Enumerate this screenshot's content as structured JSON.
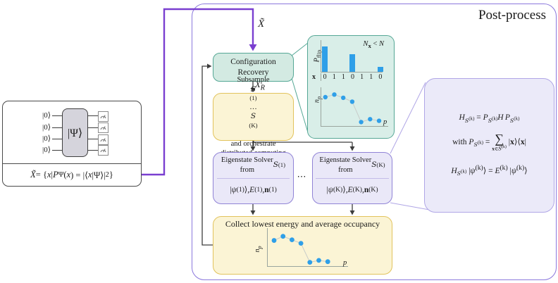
{
  "post_process": {
    "label": "Post-process"
  },
  "circuit_panel": {
    "qubit_labels": [
      "|0⟩",
      "|0⟩",
      "|0⟩",
      "|0⟩"
    ],
    "gate_label": "|Ψ⟩",
    "formula_html": "<i>X̃</i> = {<i>x</i>|<i>P</i><sub>Ψ</sub>(<i>x</i>) = |⟨<i>x</i>|Ψ⟩|<sup>2</sup>}",
    "measurement_icon": "gauge-icon"
  },
  "flow": {
    "xtilde_html": "<i>X̃</i>",
    "config_recovery_html": "Configuration<br>Recovery",
    "xr_html": "<i>X</i><sub><i>R</i></sub>",
    "subsample_html": "Subsample <span class='cal'>S</span><sup>(1)</sup>…<span class='cal'>S</span><sup>(K)</sup><br>and orchestrate<br>distributed computing",
    "ellipsis": "⋯",
    "solver_1": {
      "title_html": "Eigenstate Solver<br>from <span class='cal'>S</span><sup>(1)</sup>",
      "output_html": "|<i>ψ</i><sup>(1)</sup>⟩, <i>E</i><sup>(1)</sup>, <b>n</b><sup>(1)</sup>"
    },
    "solver_K": {
      "title_html": "Eigenstate Solver<br>from <span class='cal'>S</span><sup>(K)</sup>",
      "output_html": "|<i>ψ</i><sup>(K)</sup>⟩, <i>E</i><sup>(K)</sup>, <b>n</b><sup>(K)</sup>"
    },
    "collect_title": "Collect lowest energy and average occupancy"
  },
  "equation_panel": {
    "eq1_html": "<i>H</i><sub><span class='cal'>S</span><sup>(k)</sup></sub> = <i>P</i><sub><span class='cal'>S</span><sup>(k)</sup></sub><i>H</i>&thinsp;<i>P</i><sub><span class='cal'>S</span><sup>(k)</sup></sub>",
    "eq2_html": "with <i>P</i><sub><span class='cal'>S</span><sup>(k)</sup></sub> = <span class='bigsum'><span class='s'>∑</span><span class='lim'><b>x</b>∈<span class='cal'>S</span><sup>(k)</sup></span></span> |<b>x</b>⟩⟨<b>x</b>|",
    "eq3_html": "<i>H</i><sub><span class='cal'>S</span><sup>(k)</sup></sub> |<i>ψ</i><sup>(k)</sup>⟩ = <i>E</i><sup>(k)</sup> |<i>ψ</i><sup>(k)</sup>⟩"
  },
  "chart_data": [
    {
      "type": "bar",
      "title": "",
      "ylabel": "P_flip",
      "ylabel_html": "<i>P</i><sub>flip</sub>",
      "row_label": "x",
      "categories": [
        "0",
        "1",
        "1",
        "0",
        "1",
        "1",
        "0"
      ],
      "values": [
        1.0,
        0,
        0,
        0.69,
        0,
        0,
        0.19
      ],
      "annotation": "N_x < N",
      "annotation_html": "<i>N</i><sub><b>x</b></sub> &lt; <i>N</i>",
      "ylim": [
        0,
        1
      ]
    },
    {
      "type": "scatter",
      "xlabel": "p",
      "ylabel": "n_p",
      "ylabel_html": "<i>n</i><sub><i>p</i></sub>",
      "x": [
        1,
        2,
        3,
        4,
        5,
        6,
        7
      ],
      "y": [
        0.9,
        0.98,
        0.88,
        0.76,
        0.13,
        0.22,
        0.17
      ]
    },
    {
      "type": "scatter",
      "xlabel": "p",
      "ylabel": "n_p",
      "ylabel_html": "<i>n</i><sub><i>p</i></sub>",
      "x": [
        1,
        2,
        3,
        4,
        5,
        6,
        7
      ],
      "y": [
        0.81,
        0.94,
        0.83,
        0.72,
        0.12,
        0.18,
        0.14
      ]
    }
  ],
  "colors": {
    "accent_purple": "#7a3fd0",
    "panel_border_purple": "#8b78dd",
    "teal_border": "#55a795",
    "teal_fill": "#d9eee8",
    "yellow_fill": "#fbf4d5",
    "yellow_border": "#e2c35c",
    "lavender_fill": "#eae8f8",
    "lavender_border": "#9083d6",
    "equation_fill": "#ebeaf9",
    "equation_border": "#b0a6e6",
    "bar_blue": "#2f9fe8",
    "dot_line_gray": "#c8ccc9",
    "arrow_black": "#3d3d3d"
  }
}
